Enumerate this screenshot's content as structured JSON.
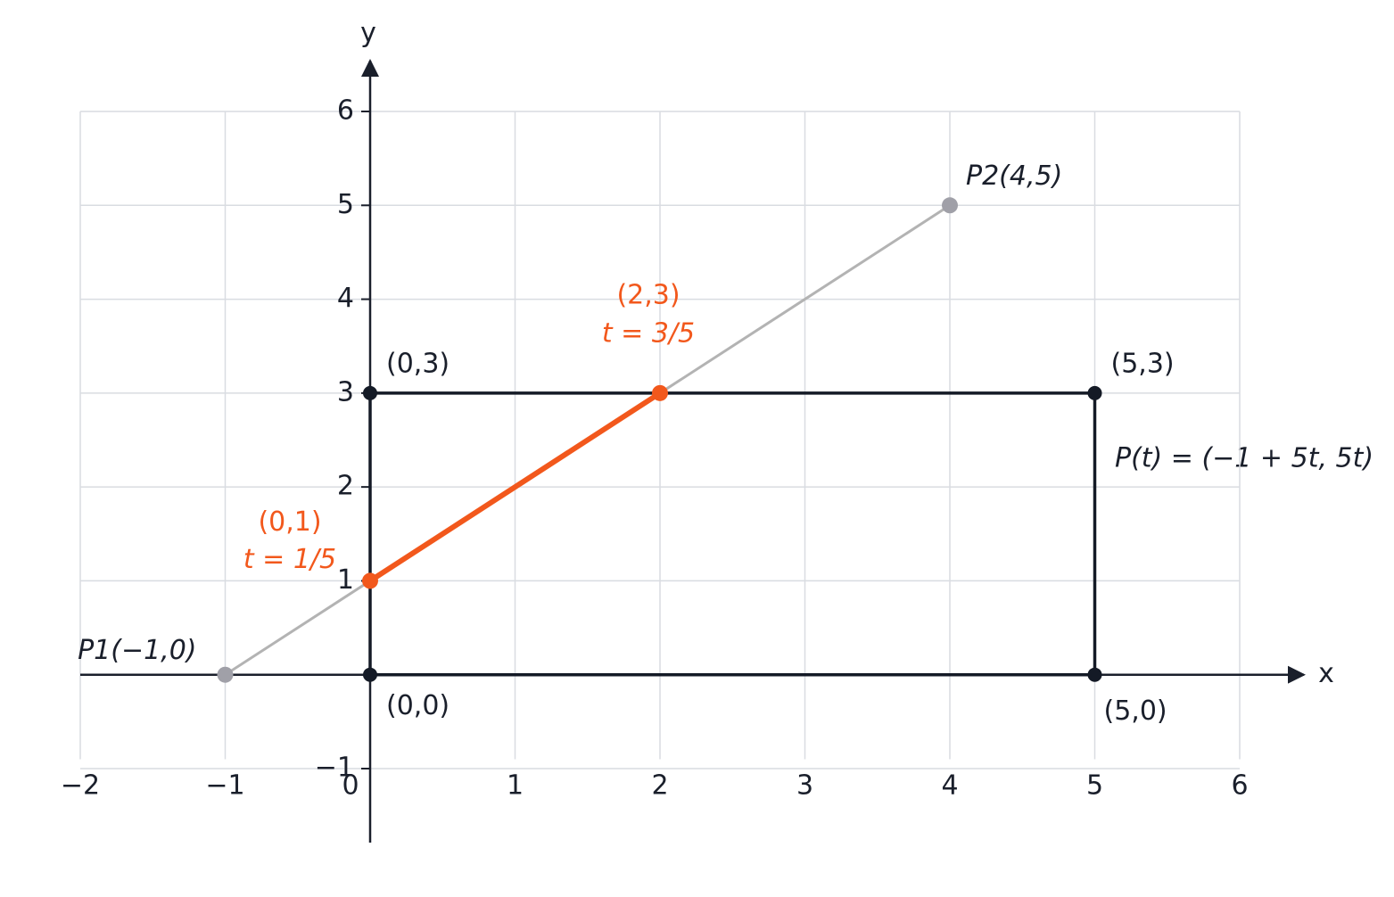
{
  "plot": {
    "x_label": "x",
    "y_label": "y",
    "xlim": [
      -2,
      6
    ],
    "ylim": [
      -1,
      6
    ],
    "xticks": [
      {
        "value": -2,
        "label": "−2"
      },
      {
        "value": -1,
        "label": "−1"
      },
      0,
      1,
      2,
      3,
      4,
      5,
      6
    ],
    "yticks": [
      {
        "value": -1,
        "label": "−1"
      },
      1,
      2,
      3,
      4,
      5,
      6
    ],
    "equation": "P(t) = (−1 + 5t, 5t)",
    "grid": true
  },
  "line": {
    "color": "#b3b3b3",
    "start": {
      "label": "P1(−1,0)",
      "x": -1,
      "y": 0
    },
    "end": {
      "label": "P2(4,5)",
      "x": 4,
      "y": 5
    }
  },
  "rectangle": {
    "color": "#141a26",
    "corners": [
      {
        "label": "(0,0)",
        "x": 0,
        "y": 0
      },
      {
        "label": "(5,0)",
        "x": 5,
        "y": 0
      },
      {
        "label": "(5,3)",
        "x": 5,
        "y": 3
      },
      {
        "label": "(0,3)",
        "x": 0,
        "y": 3
      }
    ]
  },
  "clipped": {
    "color": "#f2581c",
    "points": [
      {
        "label": "(0,1)",
        "t": "t = 1/5",
        "x": 0,
        "y": 1
      },
      {
        "label": "(2,3)",
        "t": "t = 3/5",
        "x": 2,
        "y": 3
      }
    ]
  }
}
